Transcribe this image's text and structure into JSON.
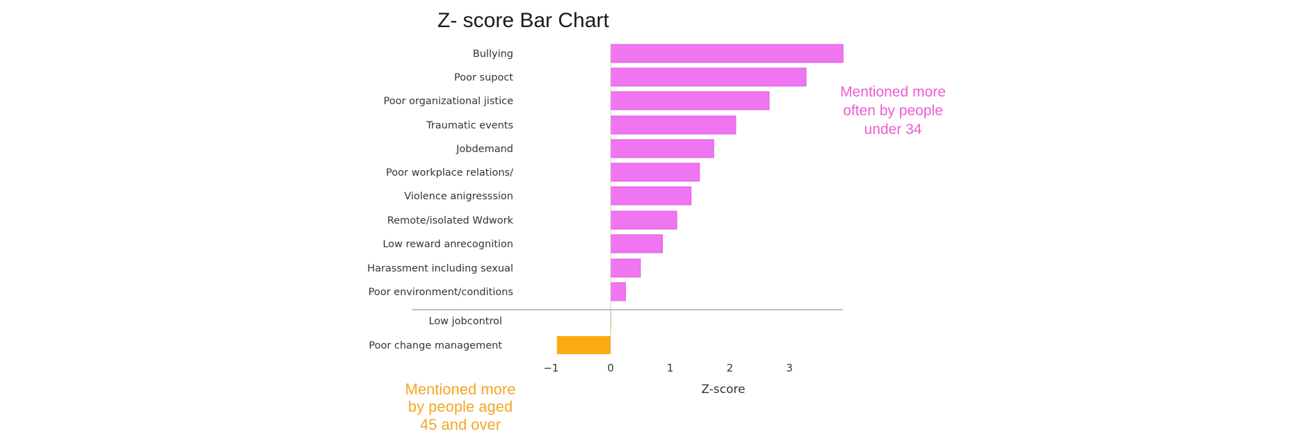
{
  "chart_data": {
    "type": "bar",
    "orientation": "horizontal",
    "title": "Z- score Bar Chart",
    "xlabel": "Z-score",
    "ylabel": "",
    "xlim": [
      -1.05,
      3.9
    ],
    "xticks": [
      -1,
      0,
      1,
      2,
      3
    ],
    "xtick_labels": [
      "−1",
      "0",
      "1",
      "2",
      "3"
    ],
    "grid": false,
    "categories": [
      "Bullying",
      "Poor supoct",
      "Poor organizational jistice",
      "Traumatic events",
      "Jobdemand",
      "Poor workplace relations/",
      "Violence anigresssion",
      "Remote/isolated Wdwork",
      "Low reward anrecognition",
      "Harassment including sexual",
      "Poor environment/conditions",
      "Low jobcontrol",
      "Poor change management"
    ],
    "values": [
      3.9,
      3.28,
      2.66,
      2.1,
      1.73,
      1.49,
      1.35,
      1.11,
      0.87,
      0.5,
      0.25,
      0.01,
      -0.9
    ],
    "colors": {
      "positive": "#f075f0",
      "positive_edge": "#e05ce0",
      "negative": "#f9ab10",
      "separator": "#aaaaaa"
    },
    "annotations": [
      {
        "id": "pink",
        "lines": [
          "Mentioned more",
          "often by people",
          "under 34"
        ],
        "color": "#ee5bd5"
      },
      {
        "id": "orange",
        "lines": [
          "Mentioned more",
          "by people aged",
          "45 and over"
        ],
        "color": "#f5a623"
      }
    ]
  }
}
